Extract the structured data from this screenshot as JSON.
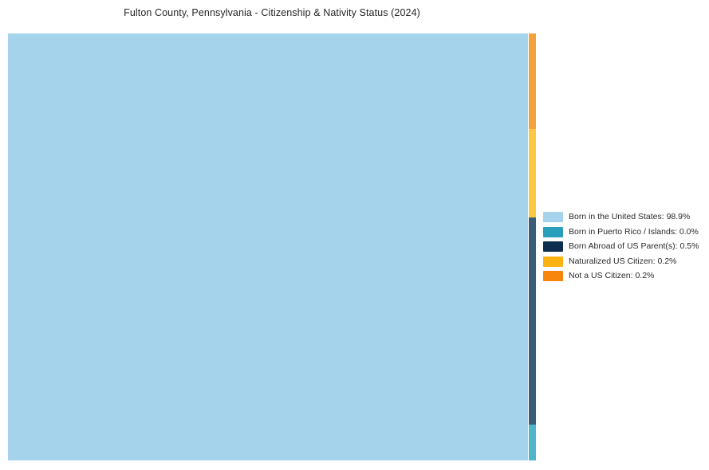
{
  "title": "Fulton County, Pennsylvania - Citizenship & Nativity Status (2024)",
  "chart_data": {
    "type": "treemap",
    "title": "Fulton County, Pennsylvania - Citizenship & Nativity Status (2024)",
    "categories": [
      "Born in the United States",
      "Born in Puerto Rico / Islands",
      "Born Abroad of US Parent(s)",
      "Naturalized US Citizen",
      "Not a US Citizen"
    ],
    "values": [
      98.9,
      0.0,
      0.5,
      0.2,
      0.2
    ],
    "unit": "%",
    "colors": [
      "#a5d3ec",
      "#2a9fbb",
      "#0d2e4e",
      "#fcb312",
      "#f8860d"
    ],
    "legend_position": "right-center",
    "grid": false,
    "layout_note": "single large tile for dominant category, thin vertical strip on right holds remaining categories top-to-bottom: Not a US Citizen, Naturalized US Citizen, Born Abroad of US Parent(s), Born in Puerto Rico / Islands"
  },
  "tiles": {
    "main": {
      "name": "Born in the United States",
      "fill": "#a5d3ec"
    },
    "orange": {
      "name": "Not a US Citizen",
      "fill": "#f2a33d"
    },
    "yellow": {
      "name": "Naturalized US Citizen",
      "fill": "#fbc846"
    },
    "navy": {
      "name": "Born Abroad of US Parent(s)",
      "fill": "#3c5d77"
    },
    "teal": {
      "name": "Born in Puerto Rico / Islands",
      "fill": "#4fb5c9"
    }
  },
  "legend": {
    "items": [
      {
        "label": "Born in the United States: 98.9%",
        "color": "#a5d3ec"
      },
      {
        "label": "Born in Puerto Rico / Islands: 0.0%",
        "color": "#2a9fbb"
      },
      {
        "label": "Born Abroad of US Parent(s): 0.5%",
        "color": "#0d2e4e"
      },
      {
        "label": "Naturalized US Citizen: 0.2%",
        "color": "#fcb312"
      },
      {
        "label": "Not a US Citizen: 0.2%",
        "color": "#f8860d"
      }
    ]
  }
}
